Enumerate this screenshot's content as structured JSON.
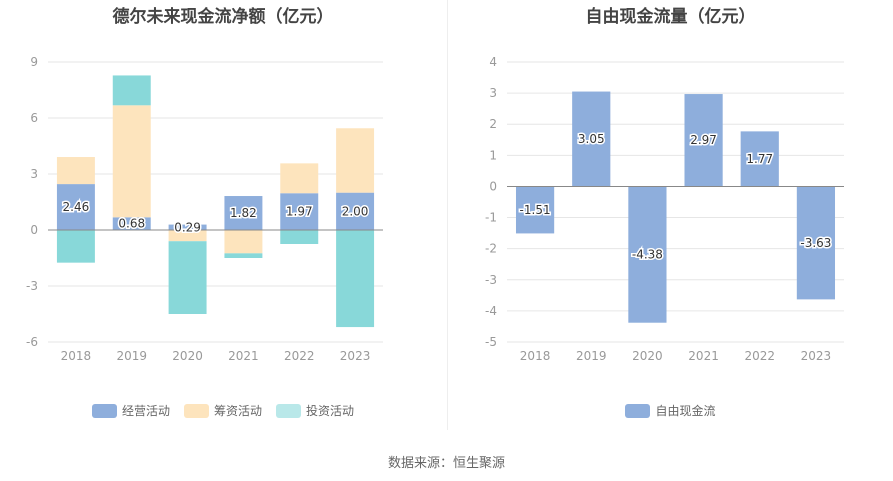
{
  "source": "数据来源：恒生聚源",
  "chart_data": [
    {
      "type": "bar",
      "stacked": true,
      "title": "德尔未来现金流净额（亿元）",
      "categories": [
        "2018",
        "2019",
        "2020",
        "2021",
        "2022",
        "2023"
      ],
      "ylim": [
        -6,
        9
      ],
      "yticks": [
        9,
        6,
        3,
        0,
        -3,
        -6
      ],
      "legend_position": "bottom",
      "series": [
        {
          "name": "经营活动",
          "color": "#8eaedc",
          "values": [
            2.46,
            0.68,
            0.29,
            1.82,
            1.97,
            2.0
          ],
          "data_labels": [
            "2.46",
            "0.68",
            "0.29",
            "1.82",
            "1.97",
            "2.00"
          ]
        },
        {
          "name": "筹资活动",
          "color": "#fde4bd",
          "values": [
            1.45,
            6.0,
            -0.6,
            -1.25,
            1.6,
            3.45
          ]
        },
        {
          "name": "投资活动",
          "color": "#88d8d9",
          "values": [
            -1.75,
            1.6,
            -3.9,
            -0.25,
            -0.75,
            -5.2
          ]
        }
      ]
    },
    {
      "type": "bar",
      "title": "自由现金流量（亿元）",
      "categories": [
        "2018",
        "2019",
        "2020",
        "2021",
        "2022",
        "2023"
      ],
      "ylim": [
        -5,
        4
      ],
      "yticks": [
        4,
        3,
        2,
        1,
        0,
        -1,
        -2,
        -3,
        -4,
        -5
      ],
      "legend_position": "bottom",
      "series": [
        {
          "name": "自由现金流",
          "color": "#8eaedc",
          "values": [
            -1.51,
            3.05,
            -4.38,
            2.97,
            1.77,
            -3.63
          ],
          "data_labels": [
            "-1.51",
            "3.05",
            "-4.38",
            "2.97",
            "1.77",
            "-3.63"
          ]
        }
      ]
    }
  ]
}
